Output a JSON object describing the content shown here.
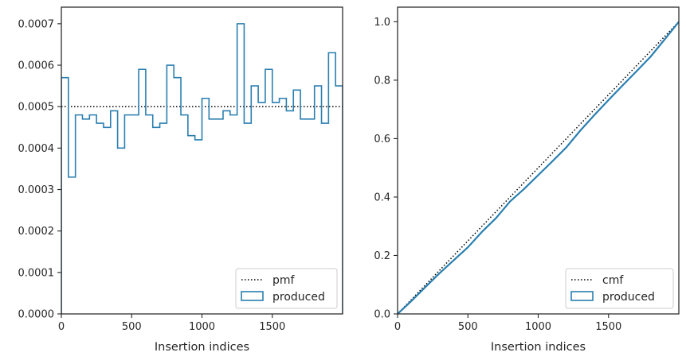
{
  "chart_data": [
    {
      "type": "histogram",
      "xlabel": "Insertion indices",
      "ylabel": "",
      "xlim": [
        0,
        2000
      ],
      "ylim": [
        0,
        0.00074
      ],
      "xticks": [
        0,
        500,
        1000,
        1500
      ],
      "xtick_labels": [
        "0",
        "500",
        "1000",
        "1500"
      ],
      "yticks": [
        0,
        0.0001,
        0.0002,
        0.0003,
        0.0004,
        0.0005,
        0.0006,
        0.0007
      ],
      "ytick_labels": [
        "0.0000",
        "0.0001",
        "0.0002",
        "0.0003",
        "0.0004",
        "0.0005",
        "0.0006",
        "0.0007"
      ],
      "grid": false,
      "legend_position": "bottom-right",
      "legend": [
        "pmf",
        "produced"
      ],
      "reference_line": {
        "name": "pmf",
        "y": 0.0005,
        "style": "dotted",
        "color": "#000000"
      },
      "series": [
        {
          "name": "produced",
          "color": "#2a7fb0",
          "bin_edges": [
            0,
            50,
            100,
            150,
            200,
            250,
            300,
            350,
            400,
            450,
            500,
            550,
            600,
            650,
            700,
            750,
            800,
            850,
            900,
            950,
            1000,
            1050,
            1100,
            1150,
            1200,
            1250,
            1300,
            1350,
            1400,
            1450,
            1500,
            1550,
            1600,
            1650,
            1700,
            1750,
            1800,
            1850,
            1900,
            1950,
            2000
          ],
          "values": [
            0.00057,
            0.00033,
            0.00048,
            0.00047,
            0.00048,
            0.00046,
            0.00045,
            0.00049,
            0.0004,
            0.00048,
            0.00048,
            0.00059,
            0.00048,
            0.00045,
            0.00046,
            0.0006,
            0.00057,
            0.00048,
            0.00043,
            0.00042,
            0.00052,
            0.00047,
            0.00047,
            0.00049,
            0.00048,
            0.0007,
            0.00046,
            0.00055,
            0.00051,
            0.00059,
            0.00051,
            0.00052,
            0.00049,
            0.00054,
            0.00047,
            0.00047,
            0.00055,
            0.00046,
            0.00063,
            0.00055
          ]
        }
      ]
    },
    {
      "type": "line",
      "xlabel": "Insertion indices",
      "ylabel": "",
      "xlim": [
        0,
        2000
      ],
      "ylim": [
        0,
        1.05
      ],
      "xticks": [
        0,
        500,
        1000,
        1500
      ],
      "xtick_labels": [
        "0",
        "500",
        "1000",
        "1500"
      ],
      "yticks": [
        0,
        0.2,
        0.4,
        0.6,
        0.8,
        1.0
      ],
      "ytick_labels": [
        "0.0",
        "0.2",
        "0.4",
        "0.6",
        "0.8",
        "1.0"
      ],
      "grid": false,
      "legend_position": "bottom-right",
      "legend": [
        "cmf",
        "produced"
      ],
      "series": [
        {
          "name": "cmf",
          "style": "dotted",
          "color": "#000000",
          "x": [
            0,
            2000
          ],
          "y": [
            0,
            1.0
          ]
        },
        {
          "name": "produced",
          "color": "#2a7fb0",
          "x": [
            0,
            100,
            200,
            300,
            400,
            500,
            600,
            700,
            800,
            900,
            1000,
            1100,
            1200,
            1300,
            1400,
            1500,
            1600,
            1700,
            1800,
            1900,
            2000
          ],
          "y": [
            0,
            0.045,
            0.093,
            0.14,
            0.184,
            0.228,
            0.281,
            0.328,
            0.385,
            0.428,
            0.475,
            0.522,
            0.57,
            0.628,
            0.681,
            0.732,
            0.782,
            0.831,
            0.881,
            0.94,
            1.0
          ]
        }
      ]
    }
  ]
}
